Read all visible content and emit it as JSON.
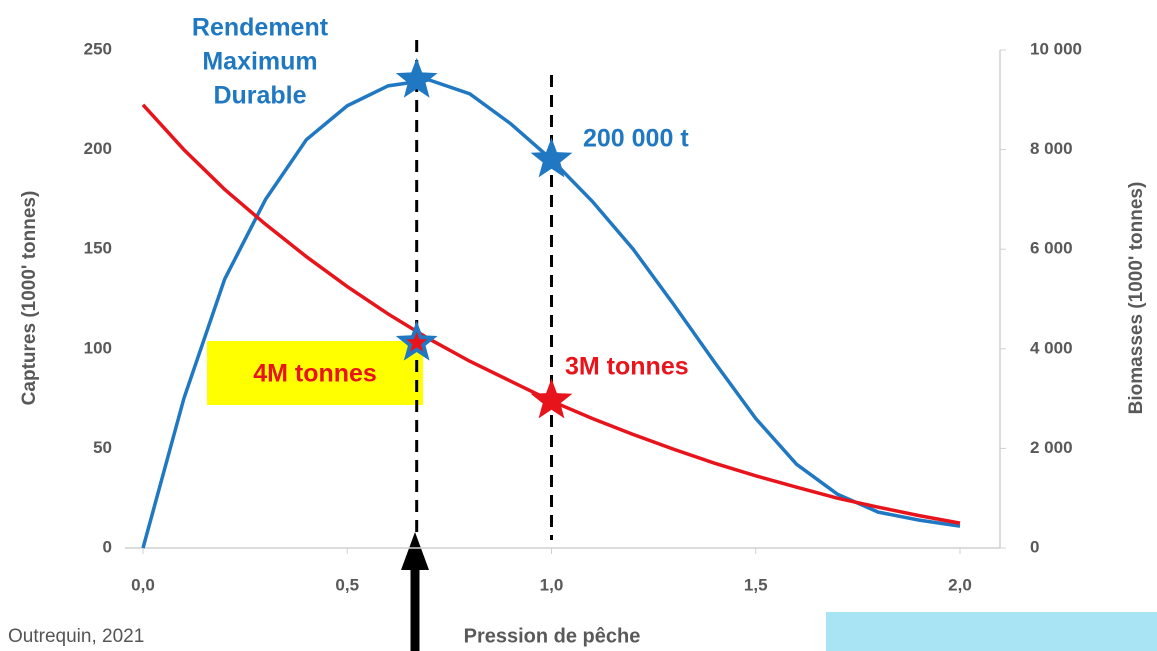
{
  "chart_data": {
    "type": "line",
    "x": [
      0,
      0.1,
      0.2,
      0.3,
      0.4,
      0.5,
      0.6,
      0.7,
      0.8,
      0.9,
      1.0,
      1.1,
      1.2,
      1.3,
      1.4,
      1.5,
      1.6,
      1.7,
      1.8,
      1.9,
      2.0
    ],
    "series": [
      {
        "name": "Captures",
        "color": "#1f78c1",
        "axis": "y",
        "values": [
          0,
          75,
          135,
          175,
          205,
          222,
          232,
          235,
          228,
          213,
          195,
          174,
          150,
          122,
          93,
          65,
          42,
          27,
          18,
          14,
          11
        ]
      },
      {
        "name": "Biomasses",
        "color": "#e8141b",
        "axis": "y2",
        "values": [
          8900,
          8000,
          7200,
          6500,
          5850,
          5250,
          4700,
          4200,
          3750,
          3350,
          2950,
          2600,
          2280,
          1980,
          1700,
          1450,
          1220,
          1000,
          820,
          650,
          500
        ]
      }
    ],
    "xlabel": "Pression de pêche",
    "ylabel": "Captures (1000' tonnes)",
    "y2label": "Biomasses (1000' tonnes)",
    "xlim": [
      0,
      2.0
    ],
    "xticks": [
      {
        "value": 0,
        "label": "0,0"
      },
      {
        "value": 0.5,
        "label": "0,5"
      },
      {
        "value": 1.0,
        "label": "1,0"
      },
      {
        "value": 1.5,
        "label": "1,5"
      },
      {
        "value": 2.0,
        "label": "2,0"
      }
    ],
    "ylim": [
      0,
      250
    ],
    "yticks": [
      0,
      50,
      100,
      150,
      200,
      250
    ],
    "y2lim": [
      0,
      10000
    ],
    "y2ticks": [
      0,
      {
        "value": 2000,
        "label": "2 000"
      },
      {
        "value": 4000,
        "label": "4 000"
      },
      {
        "value": 6000,
        "label": "6 000"
      },
      {
        "value": 8000,
        "label": "8 000"
      },
      {
        "value": 10000,
        "label": "10 000"
      }
    ],
    "vlines": [
      0.67,
      1.0
    ],
    "markers": [
      {
        "x": 0.67,
        "y": 235,
        "color": "#1f78c1"
      },
      {
        "x": 1.0,
        "y": 195,
        "color": "#1f78c1"
      },
      {
        "x": 0.67,
        "y": 103,
        "color": "#1f78c1"
      },
      {
        "x": 1.0,
        "y": 74,
        "color": "#e8141b"
      }
    ],
    "annotations": [
      {
        "lines": [
          "Rendement",
          "Maximum",
          "Durable"
        ],
        "color": "#1f78c1"
      },
      {
        "lines": [
          "200 000 t"
        ],
        "color": "#1f78c1"
      },
      {
        "lines": [
          "4M tonnes"
        ],
        "color": "#e8141b"
      },
      {
        "lines": [
          "3M tonnes"
        ],
        "color": "#e8141b"
      }
    ],
    "source": "Outrequin, 2021"
  }
}
